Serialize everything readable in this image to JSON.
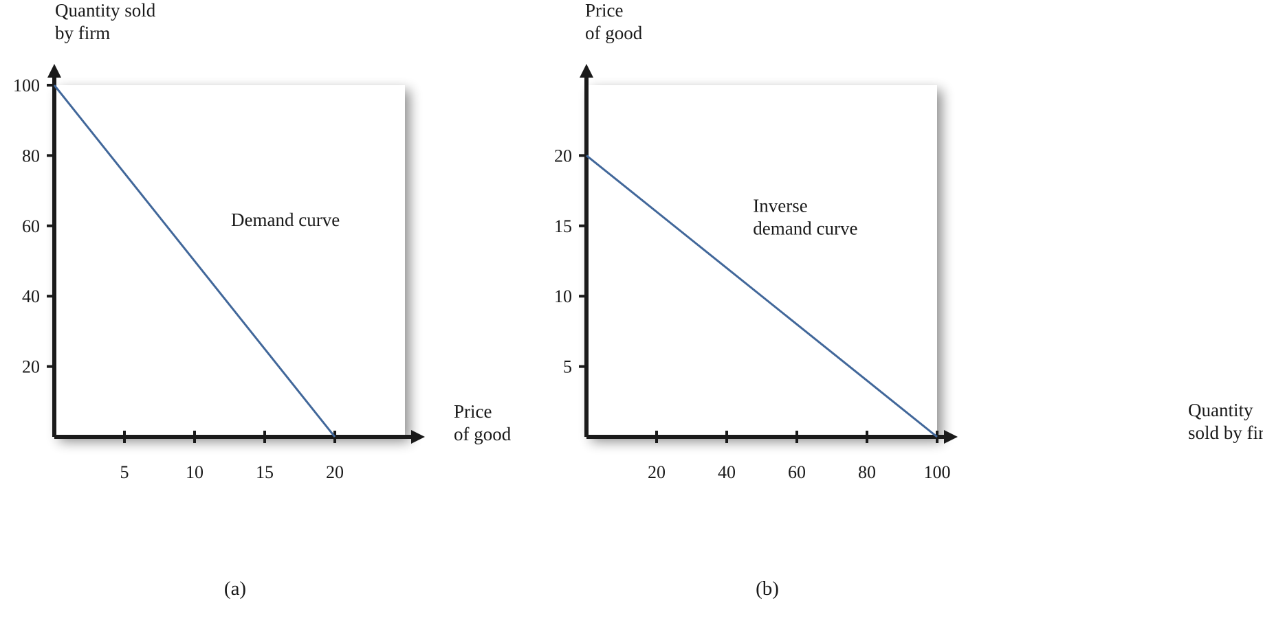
{
  "chart_data": [
    {
      "type": "line",
      "panel_label": "(a)",
      "ylabel_lines": [
        "Quantity sold",
        "by firm"
      ],
      "xlabel_lines": [
        "Price",
        "of good"
      ],
      "x_ticks": [
        5,
        10,
        15,
        20
      ],
      "y_ticks": [
        20,
        40,
        60,
        80,
        100
      ],
      "xlim": [
        0,
        25
      ],
      "ylim": [
        0,
        100
      ],
      "series": [
        {
          "x": [
            0,
            20
          ],
          "y": [
            100,
            0
          ],
          "color": "#41679a"
        }
      ],
      "annotations": [
        {
          "lines": [
            "Demand curve"
          ],
          "x": 12.6,
          "y": 60
        }
      ]
    },
    {
      "type": "line",
      "panel_label": "(b)",
      "ylabel_lines": [
        "Price",
        "of good"
      ],
      "xlabel_lines": [
        "Quantity",
        "sold by firm"
      ],
      "x_ticks": [
        20,
        40,
        60,
        80,
        100
      ],
      "y_ticks": [
        5,
        10,
        15,
        20
      ],
      "xlim": [
        0,
        100
      ],
      "ylim": [
        0,
        25
      ],
      "series": [
        {
          "x": [
            0,
            100
          ],
          "y": [
            20,
            0
          ],
          "color": "#41679a"
        }
      ],
      "annotations": [
        {
          "lines": [
            "Inverse",
            "demand curve"
          ],
          "x": 47.5,
          "y": 16
        }
      ]
    }
  ],
  "colors": {
    "axis": "#1a1a1a",
    "curve": "#41679a",
    "plot_bg": "#ffffff"
  }
}
